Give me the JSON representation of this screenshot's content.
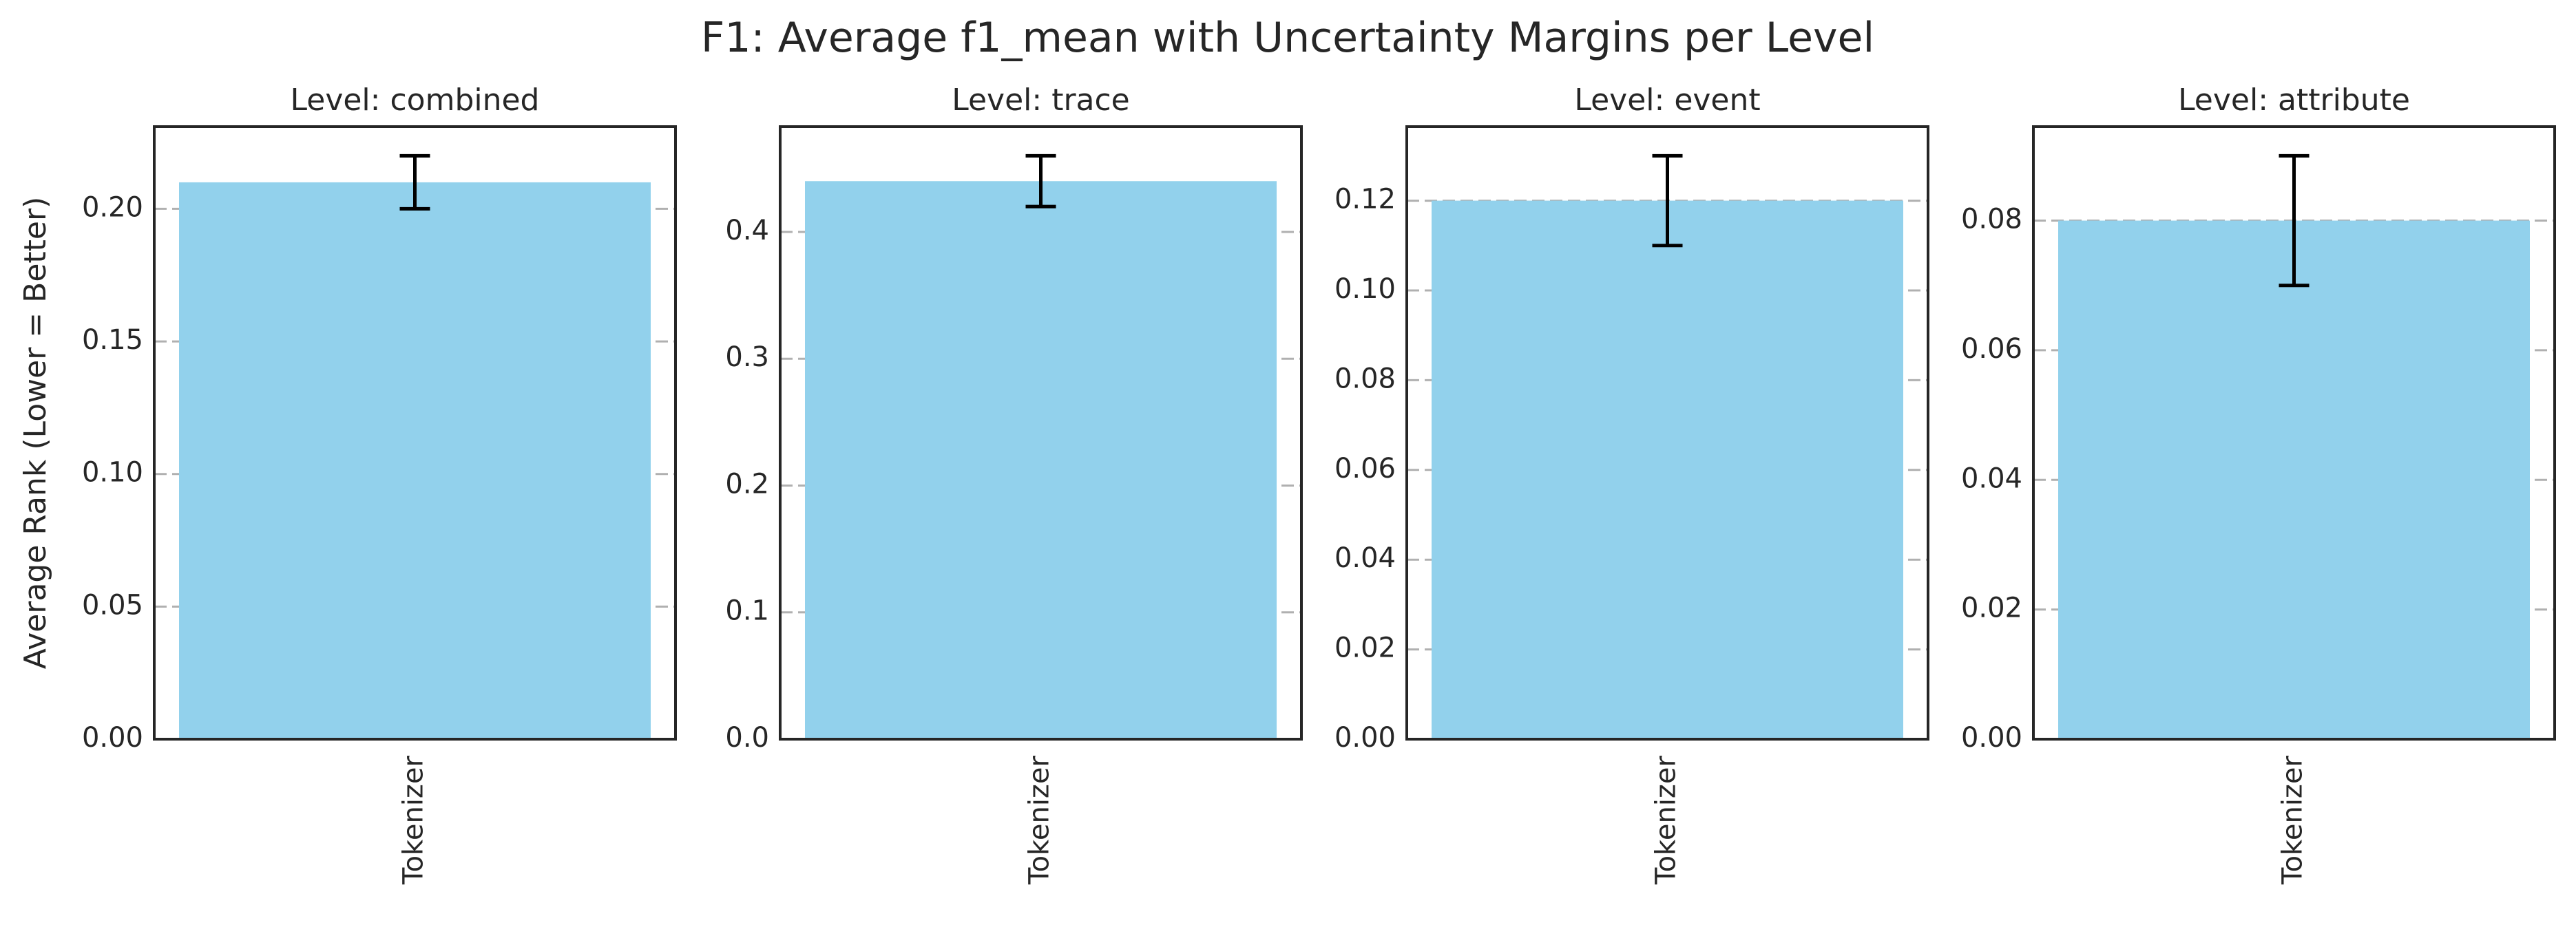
{
  "title": "F1: Average f1_mean with Uncertainty Margins per Level",
  "colors": {
    "bar": "#92d1ec",
    "axis": "#262626",
    "grid": "#b0b0b0",
    "errorbar": "#000000"
  },
  "chart_data": [
    {
      "type": "bar",
      "title": "Level: combined",
      "categories": [
        "Tokenizer"
      ],
      "values": [
        0.21
      ],
      "error_low": [
        0.2
      ],
      "error_high": [
        0.22
      ],
      "ylabel": "Average Rank (Lower = Better)",
      "ylim": [
        0,
        0.231
      ],
      "yticks": [
        0.0,
        0.05,
        0.1,
        0.15,
        0.2
      ],
      "ytick_labels": [
        "0.00",
        "0.05",
        "0.10",
        "0.15",
        "0.20"
      ],
      "grid": "y"
    },
    {
      "type": "bar",
      "title": "Level: trace",
      "categories": [
        "Tokenizer"
      ],
      "values": [
        0.44
      ],
      "error_low": [
        0.42
      ],
      "error_high": [
        0.46
      ],
      "ylabel": "",
      "ylim": [
        0,
        0.483
      ],
      "yticks": [
        0.0,
        0.1,
        0.2,
        0.3,
        0.4
      ],
      "ytick_labels": [
        "0.0",
        "0.1",
        "0.2",
        "0.3",
        "0.4"
      ],
      "grid": "y"
    },
    {
      "type": "bar",
      "title": "Level: event",
      "categories": [
        "Tokenizer"
      ],
      "values": [
        0.12
      ],
      "error_low": [
        0.11
      ],
      "error_high": [
        0.13
      ],
      "ylabel": "",
      "ylim": [
        0,
        0.1365
      ],
      "yticks": [
        0.0,
        0.02,
        0.04,
        0.06,
        0.08,
        0.1,
        0.12
      ],
      "ytick_labels": [
        "0.00",
        "0.02",
        "0.04",
        "0.06",
        "0.08",
        "0.10",
        "0.12"
      ],
      "grid": "y"
    },
    {
      "type": "bar",
      "title": "Level: attribute",
      "categories": [
        "Tokenizer"
      ],
      "values": [
        0.08
      ],
      "error_low": [
        0.07
      ],
      "error_high": [
        0.09
      ],
      "ylabel": "",
      "ylim": [
        0,
        0.0945
      ],
      "yticks": [
        0.0,
        0.02,
        0.04,
        0.06,
        0.08
      ],
      "ytick_labels": [
        "0.00",
        "0.02",
        "0.04",
        "0.06",
        "0.08"
      ],
      "grid": "y"
    }
  ]
}
